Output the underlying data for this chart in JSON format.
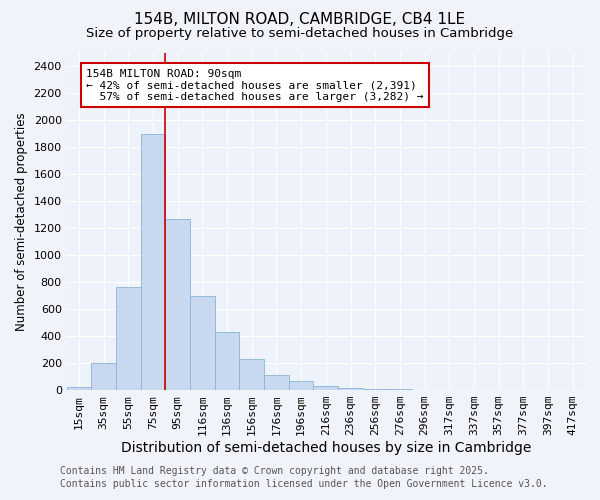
{
  "title1": "154B, MILTON ROAD, CAMBRIDGE, CB4 1LE",
  "title2": "Size of property relative to semi-detached houses in Cambridge",
  "xlabel": "Distribution of semi-detached houses by size in Cambridge",
  "ylabel": "Number of semi-detached properties",
  "categories": [
    "15sqm",
    "35sqm",
    "55sqm",
    "75sqm",
    "95sqm",
    "116sqm",
    "136sqm",
    "156sqm",
    "176sqm",
    "196sqm",
    "216sqm",
    "236sqm",
    "256sqm",
    "276sqm",
    "296sqm",
    "317sqm",
    "337sqm",
    "357sqm",
    "377sqm",
    "397sqm",
    "417sqm"
  ],
  "values": [
    25,
    200,
    760,
    1900,
    1270,
    700,
    430,
    230,
    110,
    65,
    30,
    15,
    10,
    5,
    3,
    2,
    1,
    0,
    0,
    0,
    0
  ],
  "bar_color": "#c8d8ee",
  "bar_edge_color": "#8ab4d8",
  "vline_color": "#cc0000",
  "vline_x": 3.5,
  "annotation_text_line1": "154B MILTON ROAD: 90sqm",
  "annotation_text_line2": "← 42% of semi-detached houses are smaller (2,391)",
  "annotation_text_line3": "  57% of semi-detached houses are larger (3,282) →",
  "annotation_box_color": "#ffffff",
  "annotation_box_edge": "#cc0000",
  "ylim": [
    0,
    2500
  ],
  "yticks": [
    0,
    200,
    400,
    600,
    800,
    1000,
    1200,
    1400,
    1600,
    1800,
    2000,
    2200,
    2400
  ],
  "footer1": "Contains HM Land Registry data © Crown copyright and database right 2025.",
  "footer2": "Contains public sector information licensed under the Open Government Licence v3.0.",
  "bg_color": "#f0f4fa",
  "plot_bg_color": "#eef2fa",
  "grid_color": "#ffffff",
  "title_fontsize": 11,
  "subtitle_fontsize": 9.5,
  "xlabel_fontsize": 10,
  "ylabel_fontsize": 8.5,
  "tick_fontsize": 8,
  "annot_fontsize": 8,
  "footer_fontsize": 7
}
